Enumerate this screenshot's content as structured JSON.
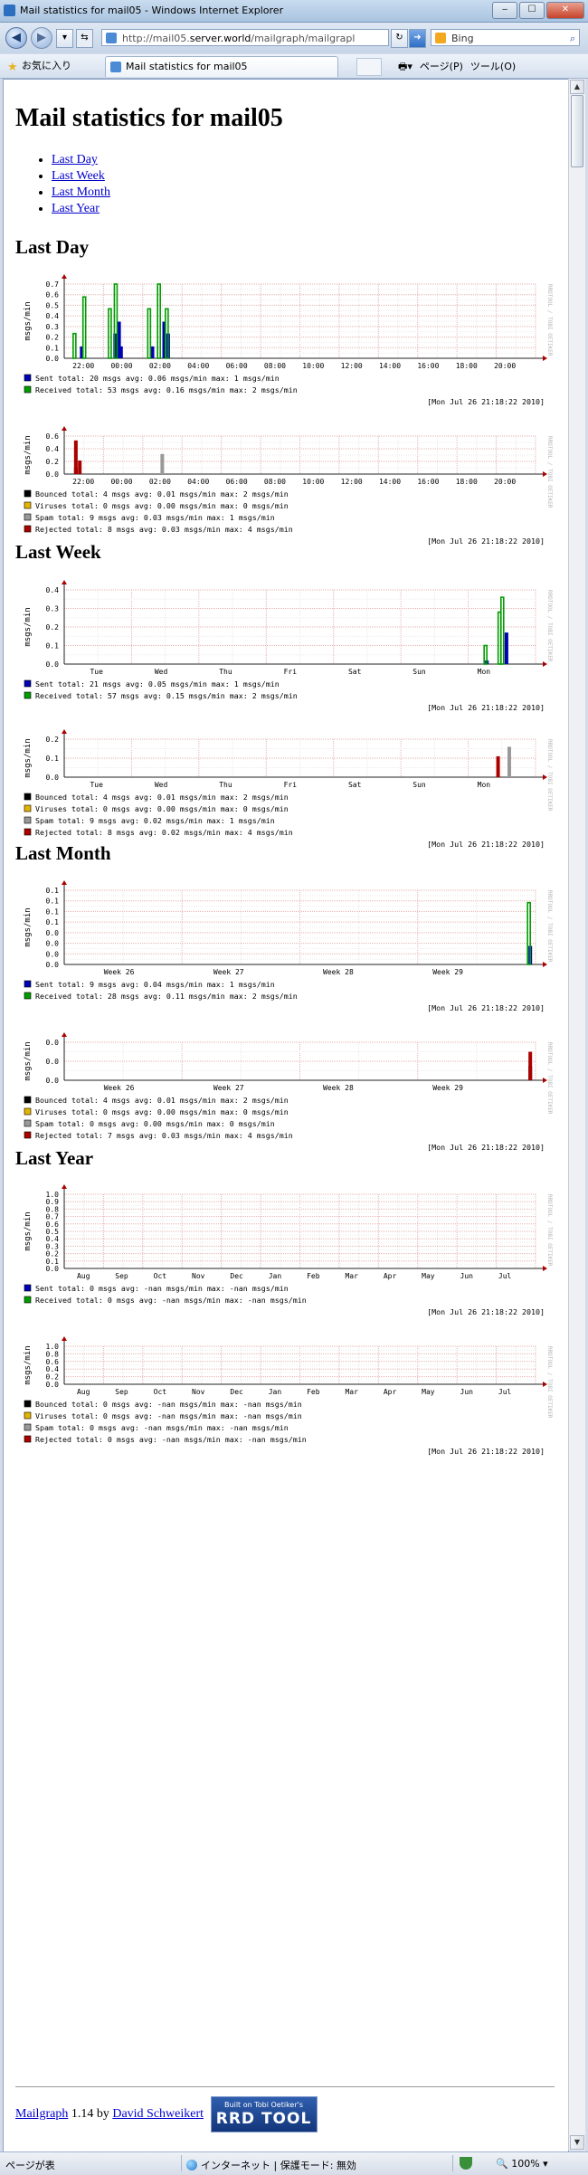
{
  "window": {
    "title": "Mail statistics for mail05 - Windows Internet Explorer",
    "url_prefix": "http://mail05.",
    "url_domain": "server.world",
    "url_rest": "/mailgraph/mailgrapl",
    "search_text": "Bing",
    "favorites_label": "お気に入り",
    "tab_title": "Mail statistics for mail05",
    "cmd_page": "ページ(P)",
    "cmd_tools": "ツール(O)",
    "status_left": "ページが表",
    "status_zone": "インターネット | 保護モード: 無効",
    "zoom": "100%"
  },
  "page": {
    "title": "Mail statistics for mail05",
    "nav": [
      "Last Day",
      "Last Week",
      "Last Month",
      "Last Year"
    ],
    "footer_link1": "Mailgraph",
    "footer_version": " 1.14 by ",
    "footer_link2": "David Schweikert",
    "rrd_logo_line1": "Built on Tobi Oetiker's",
    "rrd_logo_line2": "RRD TOOL"
  },
  "colors": {
    "sent": "#0000b4",
    "received": "#009c00",
    "bounced": "#000000",
    "viruses": "#e4b400",
    "spam": "#999999",
    "rejected": "#aa0000"
  },
  "sections": [
    {
      "heading": "Last Day",
      "graphs": [
        {
          "ylabel": "msgs/min",
          "watermark": "RRDTOOL / TOBI OETIKER",
          "yticks": [
            "0.7",
            "0.6",
            "0.5",
            "0.4",
            "0.3",
            "0.2",
            "0.1",
            "0.0"
          ],
          "xticks": [
            "22:00",
            "00:00",
            "02:00",
            "04:00",
            "06:00",
            "08:00",
            "10:00",
            "12:00",
            "14:00",
            "16:00",
            "18:00",
            "20:00"
          ],
          "legend": [
            {
              "name": "Sent",
              "color_key": "sent",
              "total": "20 msgs",
              "avg": "0.06 msgs/min",
              "max": "1 msgs/min"
            },
            {
              "name": "Received",
              "color_key": "received",
              "total": "53 msgs",
              "avg": "0.16 msgs/min",
              "max": "2 msgs/min"
            }
          ],
          "timestamp": "[Mon Jul 26 21:18:22 2010]"
        },
        {
          "ylabel": "msgs/min",
          "watermark": "RRDTOOL / TOBI OETIKER",
          "yticks": [
            "0.6",
            "0.4",
            "0.2",
            "0.0"
          ],
          "xticks": [
            "22:00",
            "00:00",
            "02:00",
            "04:00",
            "06:00",
            "08:00",
            "10:00",
            "12:00",
            "14:00",
            "16:00",
            "18:00",
            "20:00"
          ],
          "legend": [
            {
              "name": "Bounced",
              "color_key": "bounced",
              "total": "4 msgs",
              "avg": "0.01 msgs/min",
              "max": "2 msgs/min"
            },
            {
              "name": "Viruses",
              "color_key": "viruses",
              "total": "0 msgs",
              "avg": "0.00 msgs/min",
              "max": "0 msgs/min"
            },
            {
              "name": "Spam",
              "color_key": "spam",
              "total": "9 msgs",
              "avg": "0.03 msgs/min",
              "max": "1 msgs/min"
            },
            {
              "name": "Rejected",
              "color_key": "rejected",
              "total": "8 msgs",
              "avg": "0.03 msgs/min",
              "max": "4 msgs/min"
            }
          ],
          "timestamp": "[Mon Jul 26 21:18:22 2010]"
        }
      ]
    },
    {
      "heading": "Last Week",
      "graphs": [
        {
          "ylabel": "msgs/min",
          "watermark": "RRDTOOL / TOBI OETIKER",
          "yticks": [
            "0.4",
            "0.3",
            "0.2",
            "0.1",
            "0.0"
          ],
          "xticks": [
            "Tue",
            "Wed",
            "Thu",
            "Fri",
            "Sat",
            "Sun",
            "Mon"
          ],
          "legend": [
            {
              "name": "Sent",
              "color_key": "sent",
              "total": "21 msgs",
              "avg": "0.05 msgs/min",
              "max": "1 msgs/min"
            },
            {
              "name": "Received",
              "color_key": "received",
              "total": "57 msgs",
              "avg": "0.15 msgs/min",
              "max": "2 msgs/min"
            }
          ],
          "timestamp": "[Mon Jul 26 21:18:22 2010]"
        },
        {
          "ylabel": "msgs/min",
          "watermark": "RRDTOOL / TOBI OETIKER",
          "yticks": [
            "0.2",
            "0.1",
            "0.0"
          ],
          "xticks": [
            "Tue",
            "Wed",
            "Thu",
            "Fri",
            "Sat",
            "Sun",
            "Mon"
          ],
          "legend": [
            {
              "name": "Bounced",
              "color_key": "bounced",
              "total": "4 msgs",
              "avg": "0.01 msgs/min",
              "max": "2 msgs/min"
            },
            {
              "name": "Viruses",
              "color_key": "viruses",
              "total": "0 msgs",
              "avg": "0.00 msgs/min",
              "max": "0 msgs/min"
            },
            {
              "name": "Spam",
              "color_key": "spam",
              "total": "9 msgs",
              "avg": "0.02 msgs/min",
              "max": "1 msgs/min"
            },
            {
              "name": "Rejected",
              "color_key": "rejected",
              "total": "8 msgs",
              "avg": "0.02 msgs/min",
              "max": "4 msgs/min"
            }
          ],
          "timestamp": "[Mon Jul 26 21:18:22 2010]"
        }
      ]
    },
    {
      "heading": "Last Month",
      "graphs": [
        {
          "ylabel": "msgs/min",
          "watermark": "RRDTOOL / TOBI OETIKER",
          "yticks": [
            "0.1",
            "0.1",
            "0.1",
            "0.1",
            "0.0",
            "0.0",
            "0.0",
            "0.0"
          ],
          "xticks": [
            "Week 26",
            "Week 27",
            "Week 28",
            "Week 29"
          ],
          "legend": [
            {
              "name": "Sent",
              "color_key": "sent",
              "total": "9 msgs",
              "avg": "0.04 msgs/min",
              "max": "1 msgs/min"
            },
            {
              "name": "Received",
              "color_key": "received",
              "total": "28 msgs",
              "avg": "0.11 msgs/min",
              "max": "2 msgs/min"
            }
          ],
          "timestamp": "[Mon Jul 26 21:18:22 2010]"
        },
        {
          "ylabel": "msgs/min",
          "watermark": "RRDTOOL / TOBI OETIKER",
          "yticks": [
            "0.0",
            "0.0",
            "0.0"
          ],
          "xticks": [
            "Week 26",
            "Week 27",
            "Week 28",
            "Week 29"
          ],
          "legend": [
            {
              "name": "Bounced",
              "color_key": "bounced",
              "total": "4 msgs",
              "avg": "0.01 msgs/min",
              "max": "2 msgs/min"
            },
            {
              "name": "Viruses",
              "color_key": "viruses",
              "total": "0 msgs",
              "avg": "0.00 msgs/min",
              "max": "0 msgs/min"
            },
            {
              "name": "Spam",
              "color_key": "spam",
              "total": "0 msgs",
              "avg": "0.00 msgs/min",
              "max": "0 msgs/min"
            },
            {
              "name": "Rejected",
              "color_key": "rejected",
              "total": "7 msgs",
              "avg": "0.03 msgs/min",
              "max": "4 msgs/min"
            }
          ],
          "timestamp": "[Mon Jul 26 21:18:22 2010]"
        }
      ]
    },
    {
      "heading": "Last Year",
      "graphs": [
        {
          "ylabel": "msgs/min",
          "watermark": "RRDTOOL / TOBI OETIKER",
          "yticks": [
            "1.0",
            "0.9",
            "0.8",
            "0.7",
            "0.6",
            "0.5",
            "0.4",
            "0.3",
            "0.2",
            "0.1",
            "0.0"
          ],
          "xticks": [
            "Aug",
            "Sep",
            "Oct",
            "Nov",
            "Dec",
            "Jan",
            "Feb",
            "Mar",
            "Apr",
            "May",
            "Jun",
            "Jul"
          ],
          "legend": [
            {
              "name": "Sent",
              "color_key": "sent",
              "total": "0 msgs",
              "avg": "-nan msgs/min",
              "max": "-nan msgs/min"
            },
            {
              "name": "Received",
              "color_key": "received",
              "total": "0 msgs",
              "avg": "-nan msgs/min",
              "max": "-nan msgs/min"
            }
          ],
          "timestamp": "[Mon Jul 26 21:18:22 2010]"
        },
        {
          "ylabel": "msgs/min",
          "watermark": "RRDTOOL / TOBI OETIKER",
          "yticks": [
            "1.0",
            "0.8",
            "0.6",
            "0.4",
            "0.2",
            "0.0"
          ],
          "xticks": [
            "Aug",
            "Sep",
            "Oct",
            "Nov",
            "Dec",
            "Jan",
            "Feb",
            "Mar",
            "Apr",
            "May",
            "Jun",
            "Jul"
          ],
          "legend": [
            {
              "name": "Bounced",
              "color_key": "bounced",
              "total": "0 msgs",
              "avg": "-nan msgs/min",
              "max": "-nan msgs/min"
            },
            {
              "name": "Viruses",
              "color_key": "viruses",
              "total": "0 msgs",
              "avg": "-nan msgs/min",
              "max": "-nan msgs/min"
            },
            {
              "name": "Spam",
              "color_key": "spam",
              "total": "0 msgs",
              "avg": "-nan msgs/min",
              "max": "-nan msgs/min"
            },
            {
              "name": "Rejected",
              "color_key": "rejected",
              "total": "0 msgs",
              "avg": "-nan msgs/min",
              "max": "-nan msgs/min"
            }
          ],
          "timestamp": "[Mon Jul 26 21:18:22 2010]"
        }
      ]
    }
  ],
  "chart_data": [
    {
      "type": "area",
      "title": "",
      "section": "Last Day",
      "ylabel": "msgs/min",
      "ylim": [
        0,
        0.75
      ],
      "x": [
        "22:00",
        "00:00",
        "02:00"
      ],
      "series": [
        {
          "name": "Sent",
          "values": [
            [
              22.1,
              0.12
            ],
            [
              23.8,
              0.25
            ],
            [
              0.0,
              0.37
            ],
            [
              0.1,
              0.12
            ],
            [
              1.7,
              0.12
            ],
            [
              2.3,
              0.37
            ],
            [
              2.5,
              0.25
            ]
          ]
        },
        {
          "name": "Received",
          "values": [
            [
              21.8,
              0.25
            ],
            [
              22.3,
              0.62
            ],
            [
              23.6,
              0.5
            ],
            [
              23.9,
              0.75
            ],
            [
              1.6,
              0.5
            ],
            [
              2.1,
              0.75
            ],
            [
              2.5,
              0.5
            ]
          ]
        }
      ]
    },
    {
      "type": "area",
      "title": "",
      "section": "Last Day",
      "ylabel": "msgs/min",
      "ylim": [
        0,
        0.7
      ],
      "series": [
        {
          "name": "Bounced",
          "values": [
            [
              21.8,
              0.12
            ]
          ]
        },
        {
          "name": "Spam",
          "values": [
            [
              2.2,
              0.37
            ]
          ]
        },
        {
          "name": "Rejected",
          "values": [
            [
              21.8,
              0.62
            ],
            [
              22.0,
              0.25
            ]
          ]
        }
      ]
    },
    {
      "type": "area",
      "title": "",
      "section": "Last Week",
      "ylabel": "msgs/min",
      "ylim": [
        0,
        0.4
      ],
      "series": [
        {
          "name": "Sent",
          "values": [
            [
              "Sun 18h",
              0.02
            ],
            [
              "Mon 01h",
              0.17
            ]
          ]
        },
        {
          "name": "Received",
          "values": [
            [
              "Sun 18h",
              0.1
            ],
            [
              "Sun 23h",
              0.28
            ],
            [
              "Mon 00h",
              0.36
            ]
          ]
        }
      ]
    },
    {
      "type": "area",
      "title": "",
      "section": "Last Week",
      "ylabel": "msgs/min",
      "ylim": [
        0,
        0.2
      ],
      "series": [
        {
          "name": "Spam",
          "values": [
            [
              "Mon 02h",
              0.16
            ]
          ]
        },
        {
          "name": "Rejected",
          "values": [
            [
              "Sun 22h",
              0.11
            ]
          ]
        }
      ]
    },
    {
      "type": "area",
      "title": "",
      "section": "Last Month",
      "ylabel": "msgs/min",
      "ylim": [
        0,
        0.12
      ],
      "series": [
        {
          "name": "Sent",
          "values": [
            [
              "Week 30",
              0.03
            ]
          ]
        },
        {
          "name": "Received",
          "values": [
            [
              "Week 30",
              0.1
            ]
          ]
        }
      ]
    },
    {
      "type": "area",
      "title": "",
      "section": "Last Month",
      "ylabel": "msgs/min",
      "ylim": [
        0,
        0.04
      ],
      "series": [
        {
          "name": "Bounced",
          "values": [
            [
              "Week 30",
              0.015
            ]
          ]
        },
        {
          "name": "Rejected",
          "values": [
            [
              "Week 30",
              0.03
            ]
          ]
        }
      ]
    },
    {
      "type": "area",
      "title": "",
      "section": "Last Year",
      "ylabel": "msgs/min",
      "ylim": [
        0,
        1.0
      ],
      "series": []
    },
    {
      "type": "area",
      "title": "",
      "section": "Last Year",
      "ylabel": "msgs/min",
      "ylim": [
        0,
        1.0
      ],
      "series": []
    }
  ]
}
